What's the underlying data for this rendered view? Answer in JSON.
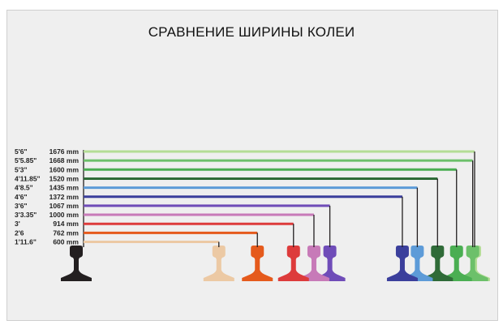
{
  "title": "СРАВНЕНИЕ ШИРИНЫ КОЛЕИ",
  "chart_data": {
    "type": "diagram",
    "reference_color": "#231f20",
    "gauges": [
      {
        "imperial": "5'6\"",
        "metric": "1676 mm",
        "mm": 1676,
        "color": "#b4dd96"
      },
      {
        "imperial": "5'5.85\"",
        "metric": "1668 mm",
        "mm": 1668,
        "color": "#6cc06a"
      },
      {
        "imperial": "5'3\"",
        "metric": "1600 mm",
        "mm": 1600,
        "color": "#4aae52"
      },
      {
        "imperial": "4'11.85\"",
        "metric": "1520 mm",
        "mm": 1520,
        "color": "#2f6b38"
      },
      {
        "imperial": "4'8.5\"",
        "metric": "1435 mm",
        "mm": 1435,
        "color": "#5d9bd8"
      },
      {
        "imperial": "4'6\"",
        "metric": "1372 mm",
        "mm": 1372,
        "color": "#3b3f9c"
      },
      {
        "imperial": "3'6\"",
        "metric": "1067 mm",
        "mm": 1067,
        "color": "#6f4cb8"
      },
      {
        "imperial": "3'3.35\"",
        "metric": "1000 mm",
        "mm": 1000,
        "color": "#c77ab8"
      },
      {
        "imperial": "3'",
        "metric": "914 mm",
        "mm": 914,
        "color": "#dd3b3b"
      },
      {
        "imperial": "2'6",
        "metric": "762 mm",
        "mm": 762,
        "color": "#e55a1c"
      },
      {
        "imperial": "1'11.6\"",
        "metric": "600 mm",
        "mm": 600,
        "color": "#ecc9a4"
      }
    ]
  }
}
